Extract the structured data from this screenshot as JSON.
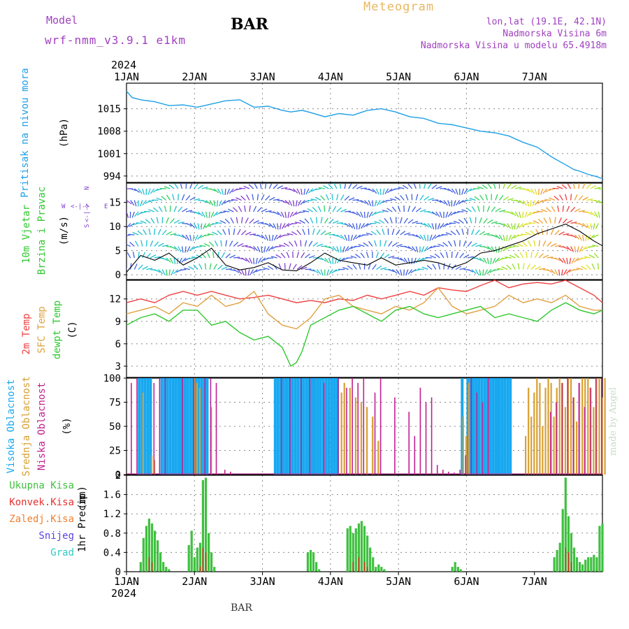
{
  "header": {
    "model_label": "Model",
    "model_name": "wrf-nmm_v3.9.1 e1km",
    "station": "BAR",
    "title": "Meteogram",
    "lonlat": "lon,lat (19.1E, 42.1N)",
    "altitude": "Nadmorska Visina 6m",
    "model_altitude": "Nadmorska Visina u modelu 65.4918m"
  },
  "footer": {
    "station": "BAR",
    "made_by": "made by Angel"
  },
  "colors": {
    "pressure": "#1ea0e6",
    "temp2m": "#f04040",
    "sfc": "#e0a040",
    "dewpt": "#30c830",
    "high_cloud": "#18a8f0",
    "mid_cloud": "#d8a030",
    "low_cloud": "#c02090",
    "total_precip": "#40c040",
    "conv_precip": "#e83030",
    "frozen": "#f08030",
    "snow": "#6040e0",
    "graupel": "#30c8c8",
    "wind_purple": "#8040d0"
  },
  "chart_data": [
    {
      "type": "line",
      "panel": "pressure",
      "ylabel": "Pritisak na nivou mora",
      "yunit": "(hPa)",
      "ylim": [
        992,
        1023
      ],
      "yticks": [
        994,
        1001,
        1008,
        1015
      ],
      "x_start_year": "2024",
      "x_ticks": [
        "1JAN",
        "2JAN",
        "3JAN",
        "4JAN",
        "5JAN",
        "6JAN",
        "7JAN"
      ],
      "grid": true,
      "series": [
        {
          "name": "Pritisak na nivou mora",
          "x_hours": [
            0,
            2,
            5,
            10,
            15,
            20,
            25,
            30,
            35,
            40,
            45,
            50,
            55,
            58,
            62,
            65,
            70,
            75,
            80,
            85,
            90,
            95,
            100,
            105,
            110,
            115,
            120,
            125,
            130,
            135,
            140,
            145,
            150,
            155,
            158,
            160,
            163,
            166,
            168
          ],
          "values": [
            1020.5,
            1018.5,
            1017.8,
            1017.2,
            1016.0,
            1016.2,
            1015.5,
            1016.5,
            1017.5,
            1017.8,
            1015.5,
            1015.8,
            1014.5,
            1014.0,
            1014.5,
            1013.8,
            1012.5,
            1013.5,
            1013.0,
            1014.5,
            1015.0,
            1014.0,
            1012.5,
            1012.0,
            1010.5,
            1010.0,
            1009.0,
            1008.0,
            1007.5,
            1006.5,
            1004.5,
            1003.0,
            1000.0,
            997.5,
            996.0,
            995.5,
            994.5,
            993.8,
            993.2
          ]
        }
      ]
    },
    {
      "type": "line",
      "panel": "wind",
      "ylabel": "10m Vjetar",
      "ylabel2": "Brzina i Pravac",
      "yunit": "(m/s)",
      "ylim": [
        -1,
        19
      ],
      "yticks": [
        0,
        5,
        10,
        15
      ],
      "compass": [
        "W",
        "N",
        "E",
        "S"
      ],
      "grid": true,
      "series": [
        {
          "name": "Brzina",
          "x_hours": [
            0,
            5,
            10,
            15,
            20,
            25,
            30,
            35,
            40,
            45,
            50,
            55,
            60,
            65,
            70,
            75,
            80,
            85,
            90,
            95,
            100,
            105,
            110,
            115,
            120,
            125,
            130,
            135,
            140,
            145,
            150,
            155,
            160,
            165,
            168
          ],
          "values": [
            0.5,
            4.0,
            3.0,
            4.5,
            2.0,
            3.5,
            5.5,
            2.0,
            1.0,
            1.5,
            2.5,
            1.0,
            0.8,
            2.5,
            4.5,
            3.0,
            2.5,
            2.0,
            3.5,
            2.0,
            2.5,
            3.0,
            2.5,
            1.5,
            2.5,
            4.5,
            5.0,
            6.0,
            7.0,
            8.5,
            9.5,
            10.5,
            9.0,
            7.0,
            6.0
          ]
        }
      ]
    },
    {
      "type": "line",
      "panel": "temperature",
      "ylabel": "2m Temp",
      "ylabel2": "SFC Temp",
      "ylabel3": "dewpt Temp",
      "yunit": "(C)",
      "ylim": [
        1.5,
        14.5
      ],
      "yticks": [
        3,
        6,
        9,
        12
      ],
      "grid": true,
      "series": [
        {
          "name": "2m Temp",
          "x_hours": [
            0,
            5,
            10,
            15,
            20,
            25,
            30,
            35,
            40,
            45,
            50,
            55,
            60,
            65,
            70,
            75,
            80,
            85,
            90,
            95,
            100,
            105,
            110,
            115,
            120,
            125,
            130,
            135,
            140,
            145,
            150,
            155,
            160,
            165,
            168
          ],
          "values": [
            11.5,
            12.0,
            11.5,
            12.5,
            13.0,
            12.5,
            13.0,
            12.5,
            12.0,
            12.2,
            12.5,
            12.0,
            11.5,
            11.8,
            11.5,
            12.0,
            11.8,
            12.5,
            12.0,
            12.5,
            13.0,
            12.5,
            13.5,
            13.2,
            13.0,
            13.8,
            14.5,
            13.5,
            14.0,
            14.2,
            14.0,
            14.5,
            13.5,
            12.5,
            11.5
          ]
        },
        {
          "name": "SFC Temp",
          "x_hours": [
            0,
            5,
            10,
            15,
            20,
            25,
            30,
            35,
            40,
            45,
            50,
            55,
            60,
            65,
            70,
            75,
            80,
            85,
            90,
            95,
            100,
            105,
            110,
            115,
            120,
            125,
            130,
            135,
            140,
            145,
            150,
            155,
            160,
            165,
            168
          ],
          "values": [
            10.0,
            10.5,
            11.0,
            10.0,
            11.5,
            11.0,
            12.5,
            11.0,
            11.5,
            13.0,
            10.0,
            8.5,
            8.0,
            9.5,
            12.0,
            12.5,
            11.0,
            10.5,
            10.0,
            11.0,
            10.5,
            11.5,
            13.5,
            11.0,
            10.0,
            10.5,
            11.0,
            12.5,
            11.5,
            12.0,
            11.5,
            12.5,
            11.0,
            10.5,
            10.5
          ]
        },
        {
          "name": "dewpt Temp",
          "x_hours": [
            0,
            5,
            10,
            15,
            20,
            25,
            30,
            35,
            40,
            45,
            50,
            55,
            58,
            60,
            62,
            65,
            70,
            75,
            80,
            85,
            90,
            95,
            100,
            105,
            110,
            115,
            120,
            125,
            130,
            135,
            140,
            145,
            150,
            155,
            160,
            165,
            168
          ],
          "values": [
            8.5,
            9.5,
            10.0,
            9.0,
            10.5,
            10.5,
            8.5,
            9.0,
            7.5,
            6.5,
            7.0,
            5.5,
            3.0,
            3.5,
            5.0,
            8.5,
            9.5,
            10.5,
            11.0,
            10.0,
            9.0,
            10.5,
            11.0,
            10.0,
            9.5,
            10.0,
            10.5,
            11.0,
            9.5,
            10.0,
            9.5,
            9.0,
            10.5,
            11.5,
            10.5,
            10.0,
            10.5
          ]
        }
      ]
    },
    {
      "type": "bar",
      "panel": "cloud",
      "ylabel": "Visoka Oblacnost",
      "ylabel2": "Srednja Oblacnost",
      "ylabel3": "Niska Oblacnost",
      "yunit": "(%)",
      "ylim": [
        0,
        100
      ],
      "yticks": [
        0,
        25,
        50,
        75,
        100
      ],
      "grid": true,
      "series": [
        {
          "name": "Visoka Oblacnost",
          "x_hours": [
            4,
            5,
            6,
            7,
            8,
            12,
            13,
            14,
            15,
            16,
            17,
            18,
            19,
            20,
            21,
            22,
            23,
            24,
            25,
            26,
            27,
            28,
            52,
            53,
            54,
            55,
            56,
            57,
            58,
            59,
            60,
            61,
            62,
            63,
            64,
            65,
            66,
            67,
            68,
            69,
            70,
            71,
            72,
            73,
            74,
            118,
            120,
            121,
            122,
            123,
            124,
            125,
            126,
            127,
            128,
            129,
            130,
            131,
            132,
            133,
            134,
            135
          ],
          "values": [
            100,
            100,
            100,
            100,
            100,
            100,
            100,
            100,
            100,
            100,
            100,
            100,
            100,
            100,
            100,
            100,
            100,
            100,
            100,
            100,
            100,
            100,
            100,
            100,
            100,
            100,
            100,
            100,
            100,
            100,
            100,
            100,
            100,
            100,
            100,
            100,
            100,
            100,
            100,
            100,
            100,
            100,
            100,
            100,
            100,
            100,
            100,
            100,
            100,
            100,
            100,
            100,
            100,
            100,
            100,
            100,
            100,
            100,
            100,
            100,
            100,
            100
          ]
        },
        {
          "name": "Srednja Oblacnost",
          "x_hours": [
            5,
            8,
            9,
            23,
            24,
            25,
            29,
            75,
            76,
            78,
            80,
            82,
            84,
            86,
            88,
            118,
            119,
            120,
            140,
            141,
            142,
            143,
            144,
            145,
            146,
            147,
            148,
            149,
            150,
            151,
            152,
            153,
            154,
            155,
            156,
            157,
            158,
            159,
            160,
            161,
            162,
            163,
            164,
            165,
            166,
            167,
            168
          ],
          "values": [
            85,
            20,
            15,
            100,
            95,
            90,
            70,
            85,
            95,
            90,
            80,
            75,
            70,
            60,
            35,
            60,
            40,
            95,
            40,
            90,
            60,
            85,
            100,
            95,
            50,
            90,
            100,
            95,
            60,
            90,
            100,
            95,
            70,
            100,
            100,
            80,
            55,
            95,
            100,
            100,
            100,
            90,
            70,
            100,
            100,
            80,
            100
          ]
        },
        {
          "name": "Niska Oblacnost",
          "x_hours": [
            2,
            4,
            10,
            12,
            14,
            20,
            24,
            28,
            30,
            32,
            35,
            37,
            55,
            58,
            62,
            65,
            70,
            75,
            78,
            80,
            82,
            84,
            88,
            90,
            95,
            100,
            102,
            104,
            106,
            108,
            110,
            112,
            114,
            116,
            118,
            120,
            122,
            124,
            126,
            128,
            150,
            152,
            154,
            156,
            158,
            160,
            162,
            164,
            166,
            168
          ],
          "values": [
            95,
            100,
            95,
            100,
            100,
            100,
            100,
            100,
            100,
            95,
            5,
            3,
            100,
            100,
            100,
            100,
            95,
            100,
            90,
            100,
            95,
            100,
            85,
            100,
            80,
            65,
            40,
            90,
            75,
            80,
            10,
            5,
            3,
            2,
            5,
            20,
            100,
            85,
            75,
            100,
            65,
            75,
            95,
            100,
            80,
            95,
            70,
            90,
            100,
            100
          ]
        }
      ]
    },
    {
      "type": "bar",
      "panel": "precip",
      "ylabel": "1hr Precip",
      "yunit": "(mm)",
      "ylim": [
        0,
        2
      ],
      "yticks": [
        0,
        0.4,
        0.8,
        1.2,
        1.6,
        2
      ],
      "legend": [
        "Ukupna Kisa",
        "Konvek.Kisa",
        "Zaledj.Kisa",
        "Snijeg",
        "Grad"
      ],
      "grid": true,
      "series": [
        {
          "name": "Ukupna Kisa",
          "x_hours": [
            5,
            6,
            7,
            8,
            9,
            10,
            11,
            12,
            13,
            14,
            15,
            22,
            23,
            24,
            25,
            26,
            27,
            28,
            29,
            30,
            31,
            64,
            65,
            66,
            67,
            68,
            78,
            79,
            80,
            81,
            82,
            83,
            84,
            85,
            86,
            87,
            88,
            89,
            90,
            91,
            115,
            116,
            117,
            118,
            151,
            152,
            153,
            154,
            155,
            156,
            157,
            158,
            159,
            160,
            161,
            162,
            163,
            164,
            165,
            166,
            167,
            168
          ],
          "values": [
            0.2,
            0.7,
            0.95,
            1.1,
            1.0,
            0.85,
            0.65,
            0.4,
            0.2,
            0.1,
            0.05,
            0.55,
            0.85,
            0.3,
            0.5,
            0.6,
            1.9,
            1.95,
            0.8,
            0.4,
            0.1,
            0.4,
            0.45,
            0.4,
            0.2,
            0.05,
            0.9,
            0.95,
            0.8,
            0.9,
            1.0,
            1.05,
            0.95,
            0.75,
            0.5,
            0.3,
            0.1,
            0.15,
            0.1,
            0.05,
            0.1,
            0.2,
            0.1,
            0.05,
            0.3,
            0.45,
            0.6,
            1.3,
            1.95,
            1.15,
            0.8,
            0.5,
            0.3,
            0.2,
            0.15,
            0.25,
            0.3,
            0.3,
            0.35,
            0.3,
            0.95,
            1.0
          ]
        },
        {
          "name": "Konvek.Kisa",
          "x_hours": [
            8,
            9,
            26,
            27,
            28,
            80,
            82,
            84,
            85,
            155,
            156,
            157
          ],
          "values": [
            0.3,
            0.2,
            0.1,
            0.5,
            0.4,
            0.2,
            0.3,
            0.2,
            0.1,
            0.5,
            0.4,
            0.2
          ]
        }
      ]
    }
  ]
}
